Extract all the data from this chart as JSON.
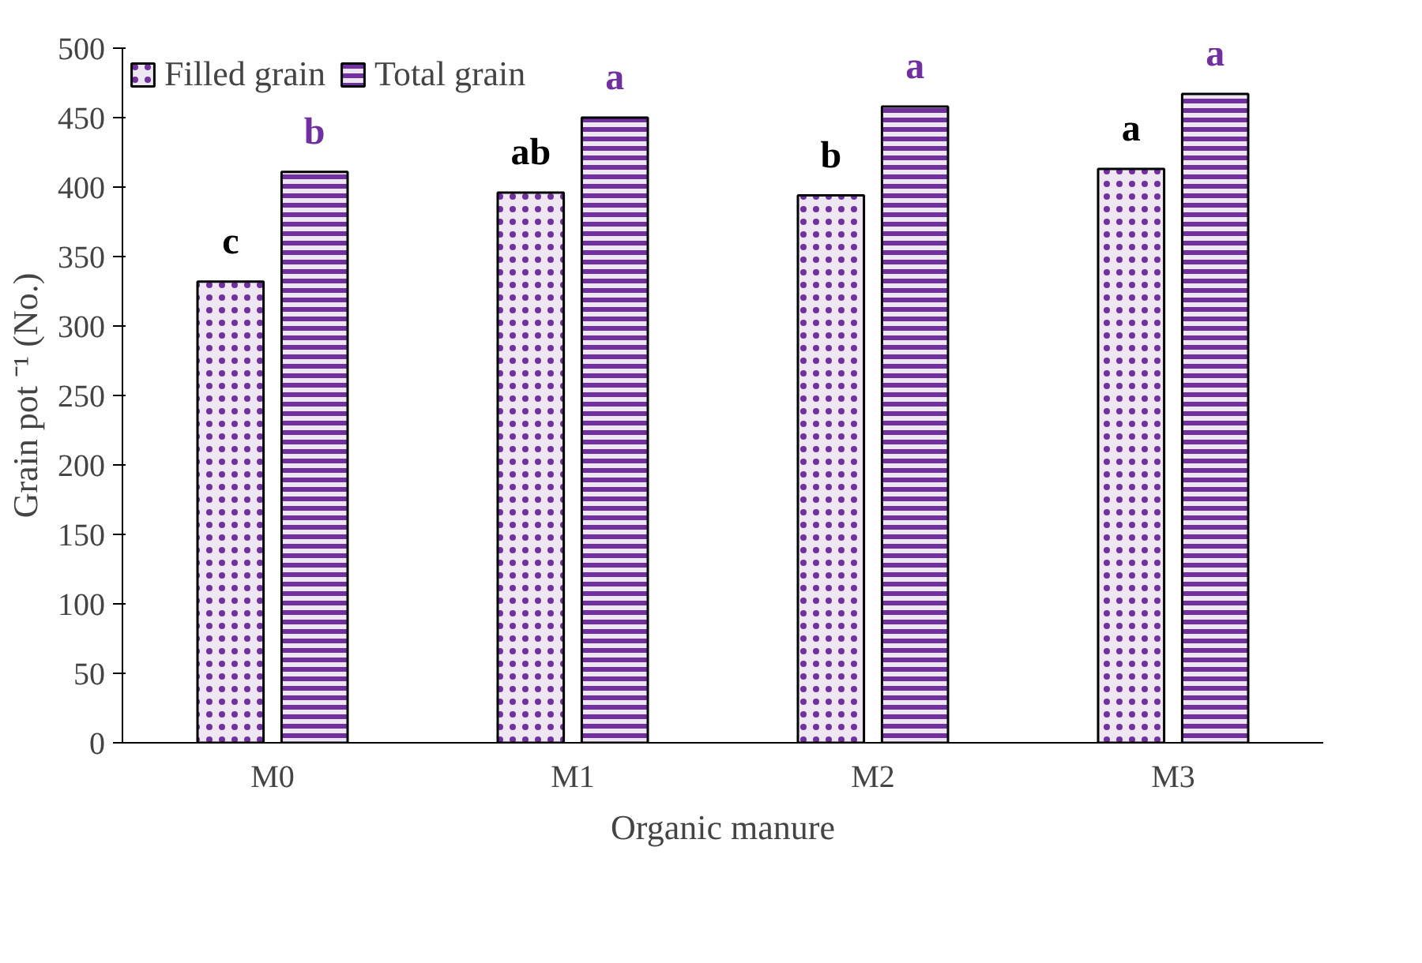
{
  "chart_data": {
    "type": "bar",
    "xlabel": "Organic manure",
    "ylabel": "Grain pot ⁻¹ (No.)",
    "categories": [
      "M0",
      "M1",
      "M2",
      "M3"
    ],
    "series": [
      {
        "name": "Filled grain",
        "color": "#7030a0",
        "values": [
          332,
          396,
          394,
          413
        ]
      },
      {
        "name": "Total grain",
        "color": "#7030a0",
        "values": [
          411,
          450,
          458,
          467
        ]
      }
    ],
    "ylim": [
      0,
      500
    ],
    "yticks": [
      0,
      50,
      100,
      150,
      200,
      250,
      300,
      350,
      400,
      450,
      500
    ],
    "grid": false,
    "legend": "top left",
    "annotations": [
      "c",
      "ab",
      "b",
      "a",
      "b",
      "a",
      "a",
      "a"
    ]
  }
}
